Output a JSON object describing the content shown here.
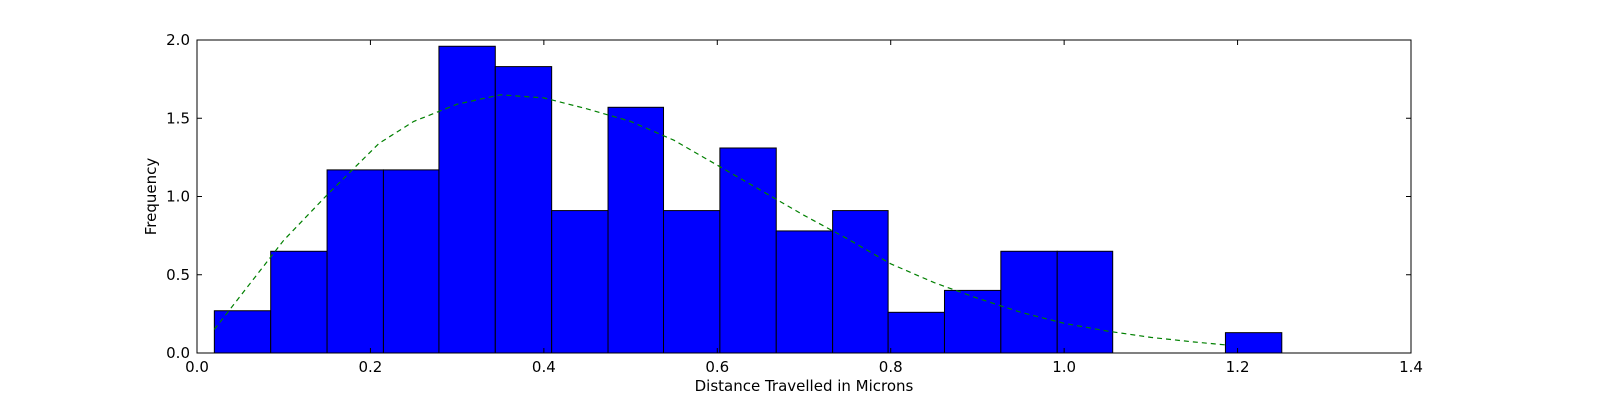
{
  "chart_data": {
    "type": "bar",
    "title": "",
    "xlabel": "Distance Travelled in Microns",
    "ylabel": "Frequency",
    "xlim": [
      0.0,
      1.4
    ],
    "ylim": [
      0.0,
      2.0
    ],
    "x_ticks": [
      "0.0",
      "0.2",
      "0.4",
      "0.6",
      "0.8",
      "1.0",
      "1.2",
      "1.4"
    ],
    "y_ticks": [
      "0.0",
      "0.5",
      "1.0",
      "1.5",
      "2.0"
    ],
    "grid": false,
    "bar_color": "#0000ff",
    "fit_color": "#008000",
    "bins": [
      {
        "x0": 0.02,
        "x1": 0.085,
        "value": 0.27
      },
      {
        "x0": 0.085,
        "x1": 0.15,
        "value": 0.65
      },
      {
        "x0": 0.15,
        "x1": 0.215,
        "value": 1.17
      },
      {
        "x0": 0.215,
        "x1": 0.279,
        "value": 1.17
      },
      {
        "x0": 0.279,
        "x1": 0.344,
        "value": 1.96
      },
      {
        "x0": 0.344,
        "x1": 0.409,
        "value": 1.83
      },
      {
        "x0": 0.409,
        "x1": 0.474,
        "value": 0.91
      },
      {
        "x0": 0.474,
        "x1": 0.538,
        "value": 1.57
      },
      {
        "x0": 0.538,
        "x1": 0.603,
        "value": 0.91
      },
      {
        "x0": 0.603,
        "x1": 0.668,
        "value": 1.31
      },
      {
        "x0": 0.668,
        "x1": 0.733,
        "value": 0.78
      },
      {
        "x0": 0.733,
        "x1": 0.797,
        "value": 0.91
      },
      {
        "x0": 0.797,
        "x1": 0.862,
        "value": 0.26
      },
      {
        "x0": 0.862,
        "x1": 0.927,
        "value": 0.4
      },
      {
        "x0": 0.927,
        "x1": 0.992,
        "value": 0.65
      },
      {
        "x0": 0.992,
        "x1": 1.056,
        "value": 0.65
      },
      {
        "x0": 1.056,
        "x1": 1.121,
        "value": 0.0
      },
      {
        "x0": 1.121,
        "x1": 1.186,
        "value": 0.0
      },
      {
        "x0": 1.186,
        "x1": 1.251,
        "value": 0.13
      }
    ],
    "fit_curve": {
      "style": "dashed",
      "x": [
        0.02,
        0.1,
        0.15,
        0.21,
        0.25,
        0.3,
        0.35,
        0.4,
        0.45,
        0.5,
        0.55,
        0.6,
        0.65,
        0.7,
        0.75,
        0.8,
        0.85,
        0.9,
        0.95,
        1.0,
        1.05,
        1.1,
        1.15,
        1.19
      ],
      "y": [
        0.15,
        0.72,
        1.01,
        1.34,
        1.48,
        1.59,
        1.65,
        1.63,
        1.56,
        1.48,
        1.36,
        1.2,
        1.04,
        0.88,
        0.73,
        0.57,
        0.45,
        0.35,
        0.26,
        0.19,
        0.14,
        0.1,
        0.07,
        0.05
      ]
    }
  }
}
